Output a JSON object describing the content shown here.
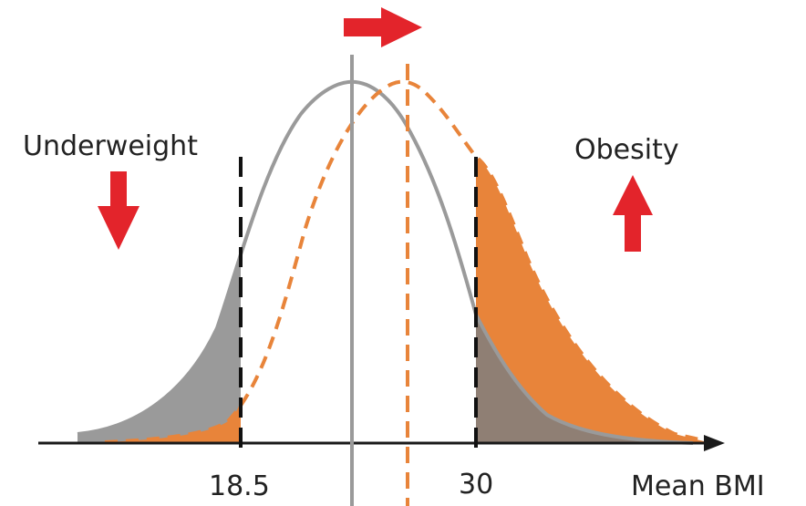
{
  "labels": {
    "left_category": "Underweight",
    "right_category": "Obesity",
    "x_axis": "Mean BMI",
    "threshold_low": "18.5",
    "threshold_high": "30"
  },
  "colors": {
    "baseline_curve": "#9a9a9a",
    "shifted_curve": "#e8843a",
    "arrow": "#e3242b",
    "axis": "#1a1a1a"
  },
  "icons": {
    "shift_indicator": "arrow-right-icon",
    "underweight_trend": "arrow-down-icon",
    "obesity_trend": "arrow-up-icon"
  }
}
